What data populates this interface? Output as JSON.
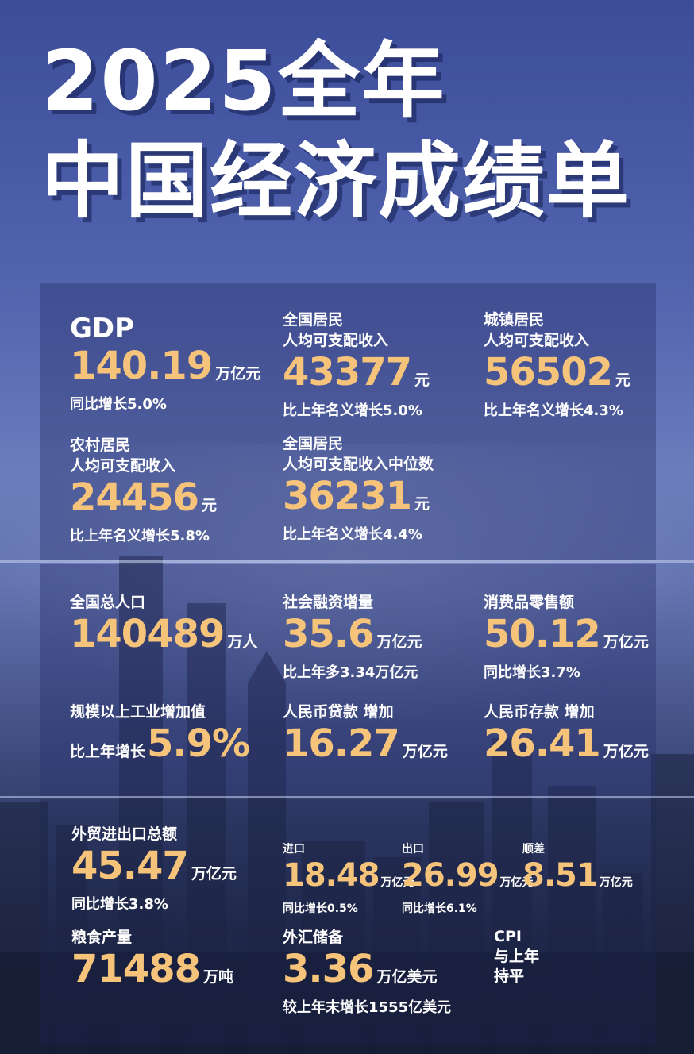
{
  "title": {
    "line1": "2025全年",
    "line2": "中国经济成绩单"
  },
  "colors": {
    "accent": "#f5c37a",
    "text": "#ffffff",
    "background": "#4a5ca8"
  },
  "gdp": {
    "label": "GDP",
    "value": "140.19",
    "unit": "万亿元",
    "note": "同比增长5.0%"
  },
  "income_all": {
    "label1": "全国居民",
    "label2": "人均可支配收入",
    "value": "43377",
    "unit": "元",
    "note": "比上年名义增长5.0%"
  },
  "income_urban": {
    "label1": "城镇居民",
    "label2": "人均可支配收入",
    "value": "56502",
    "unit": "元",
    "note": "比上年名义增长4.3%"
  },
  "income_rural": {
    "label1": "农村居民",
    "label2": "人均可支配收入",
    "value": "24456",
    "unit": "元",
    "note": "比上年名义增长5.8%"
  },
  "income_median": {
    "label1": "全国居民",
    "label2": "人均可支配收入中位数",
    "value": "36231",
    "unit": "元",
    "note": "比上年名义增长4.4%"
  },
  "population": {
    "label": "全国总人口",
    "value": "140489",
    "unit": "万人"
  },
  "social_financing": {
    "label": "社会融资增量",
    "value": "35.6",
    "unit": "万亿元",
    "note": "比上年多3.34万亿元"
  },
  "retail": {
    "label": "消费品零售额",
    "value": "50.12",
    "unit": "万亿元",
    "note": "同比增长3.7%"
  },
  "industry": {
    "label": "规模以上工业增加值",
    "prefix": "比上年增长",
    "value": "5.9%"
  },
  "rmb_loans": {
    "label": "人民币贷款 增加",
    "value": "16.27",
    "unit": "万亿元"
  },
  "rmb_deposits": {
    "label": "人民币存款 增加",
    "value": "26.41",
    "unit": "万亿元"
  },
  "trade": {
    "label": "外贸进出口总额",
    "value": "45.47",
    "unit": "万亿元",
    "note": "同比增长3.8%"
  },
  "imports": {
    "label": "进口",
    "value": "18.48",
    "unit": "万亿元",
    "note": "同比增长0.5%"
  },
  "exports": {
    "label": "出口",
    "value": "26.99",
    "unit": "万亿元",
    "note": "同比增长6.1%"
  },
  "surplus": {
    "label": "顺差",
    "value": "8.51",
    "unit": "万亿元"
  },
  "grain": {
    "label": "粮食产量",
    "value": "71488",
    "unit": "万吨"
  },
  "fx": {
    "label": "外汇储备",
    "value": "3.36",
    "unit": "万亿美元",
    "note": "较上年末增长1555亿美元"
  },
  "cpi": {
    "label": "CPI",
    "line2": "与上年",
    "line3": "持平"
  }
}
